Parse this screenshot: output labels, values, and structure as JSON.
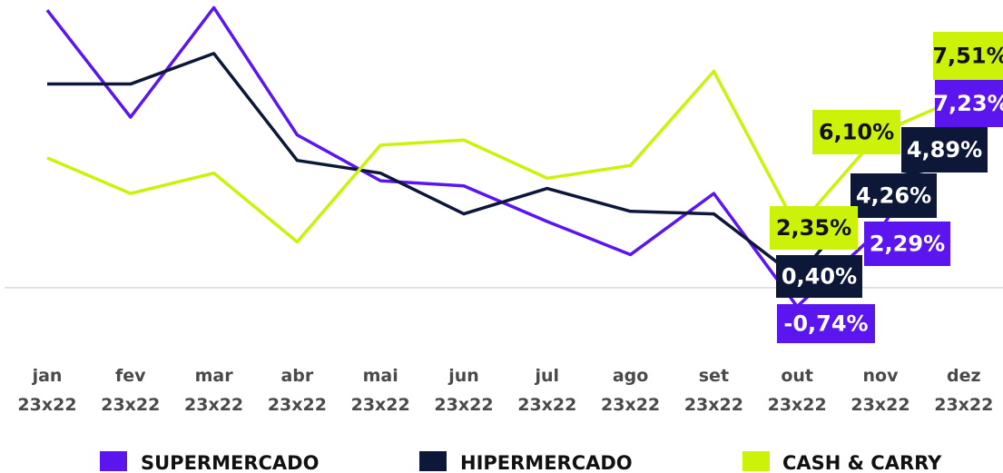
{
  "chart_data": {
    "type": "line",
    "categories": [
      "jan\n23x22",
      "fev\n23x22",
      "mar\n23x22",
      "abr\n23x22",
      "mai\n23x22",
      "jun\n23x22",
      "jul\n23x22",
      "ago\n23x22",
      "set\n23x22",
      "out\n23x22",
      "nov\n23x22",
      "dez\n23x22"
    ],
    "series": [
      {
        "name": "SUPERMERCADO",
        "color": "#5b16f0",
        "values": [
          10.9,
          6.7,
          11.0,
          6.0,
          4.2,
          4.0,
          2.6,
          1.3,
          3.7,
          -0.74,
          2.29,
          7.23
        ],
        "value_labels": [
          null,
          null,
          null,
          null,
          null,
          null,
          null,
          null,
          null,
          "-0,74%",
          "2,29%",
          "7,23%"
        ]
      },
      {
        "name": "HIPERMERCADO",
        "color": "#0d1738",
        "values": [
          8.0,
          8.0,
          9.2,
          5.0,
          4.5,
          2.9,
          3.9,
          3.0,
          2.9,
          0.4,
          4.26,
          4.89
        ],
        "value_labels": [
          null,
          null,
          null,
          null,
          null,
          null,
          null,
          null,
          null,
          "0,40%",
          "4,26%",
          "4,89%"
        ]
      },
      {
        "name": "CASH & CARRY",
        "color": "#cdf20a",
        "values": [
          5.1,
          3.7,
          4.5,
          1.8,
          5.6,
          5.8,
          4.3,
          4.8,
          8.5,
          2.35,
          6.1,
          7.51
        ],
        "value_labels": [
          null,
          null,
          null,
          null,
          null,
          null,
          null,
          null,
          null,
          "2,35%",
          "6,10%",
          "7,51%"
        ]
      }
    ],
    "ylim": [
      -2.25,
      11.3
    ]
  }
}
